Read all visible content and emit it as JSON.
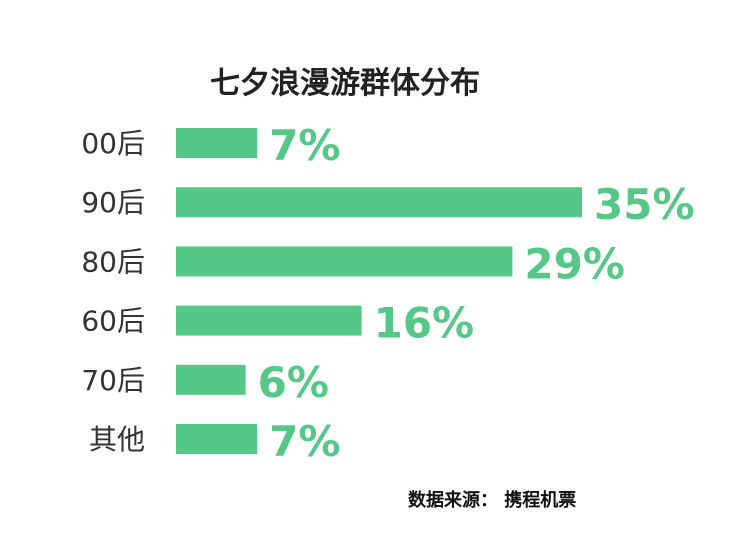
{
  "chart_data": {
    "type": "bar",
    "orientation": "horizontal",
    "title": "七夕浪漫游群体分布",
    "categories": [
      "00后",
      "90后",
      "80后",
      "60后",
      "70后",
      "其他"
    ],
    "values": [
      7,
      35,
      29,
      16,
      6,
      7
    ],
    "value_labels": [
      "7%",
      "35%",
      "29%",
      "16%",
      "6%",
      "7%"
    ],
    "unit": "%",
    "xlim": [
      0,
      35
    ],
    "grid": false,
    "legend": "none",
    "bar_color": "#55c887",
    "label_color": "#55c887"
  },
  "source": {
    "text": "数据来源：  携程机票"
  }
}
